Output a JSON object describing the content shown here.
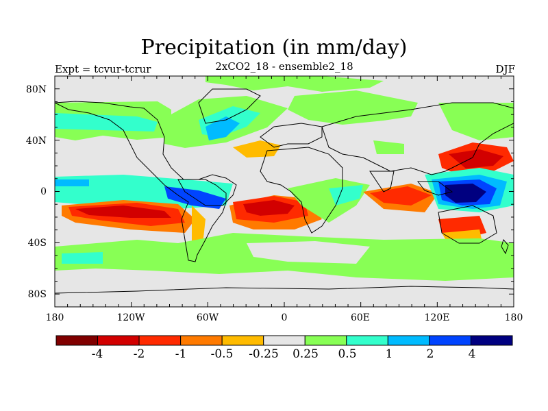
{
  "title": "Precipitation (in mm/day)",
  "subtitle": "2xCO2_18 - ensemble2_18",
  "left_label": "Expt = tcvur-tcrur",
  "right_label": "DJF",
  "y_ticks": [
    "80N",
    "40N",
    "0",
    "40S",
    "80S"
  ],
  "x_ticks": [
    "180",
    "120W",
    "60W",
    "0",
    "60E",
    "120E",
    "180"
  ],
  "map": {
    "lon_range": [
      -180,
      180
    ],
    "lat_range": [
      -90,
      90
    ],
    "ocean_color": "#e6e6e6"
  },
  "colorbar": {
    "colors": [
      "#800000",
      "#d20000",
      "#ff2a00",
      "#ff7a00",
      "#ffbb00",
      "#e6e6e6",
      "#88ff55",
      "#33ffcc",
      "#00bbff",
      "#0044ff",
      "#000080"
    ],
    "labels": [
      "-4",
      "-2",
      "-1",
      "-0.5",
      "-0.25",
      "0.25",
      "0.5",
      "1",
      "2",
      "4"
    ]
  }
}
